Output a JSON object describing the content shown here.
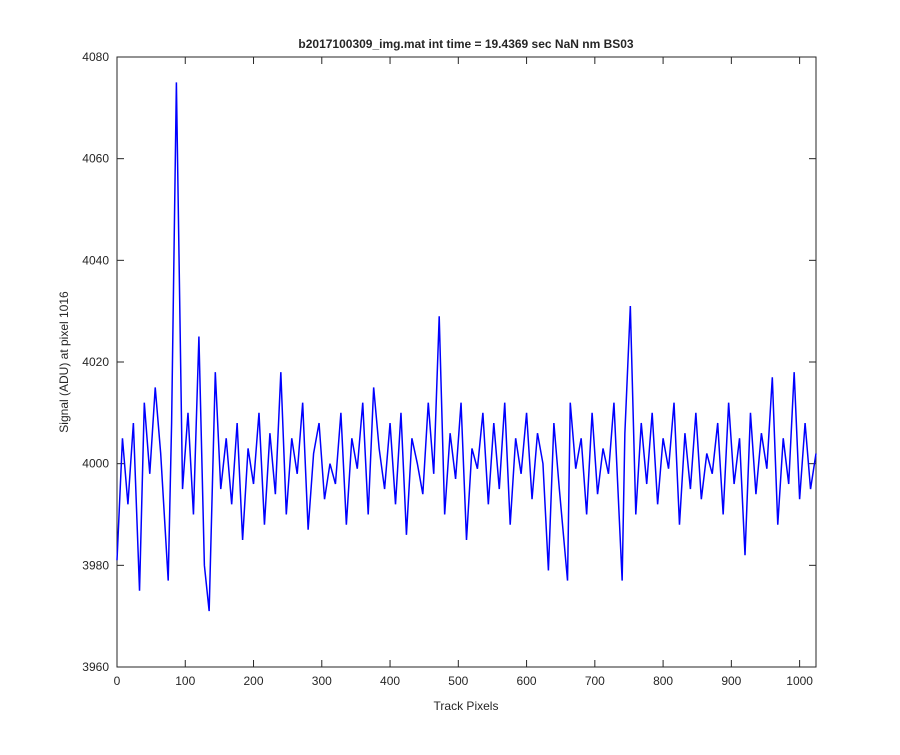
{
  "chart_data": {
    "type": "line",
    "title": "b2017100309_img.mat int time = 19.4369 sec  NaN nm BS03",
    "x_label": "Track Pixels",
    "y_label": "Signal (ADU) at pixel 1016",
    "xlim": [
      0,
      1024
    ],
    "xticks": [
      0,
      100,
      200,
      300,
      400,
      500,
      600,
      700,
      800,
      900,
      1000
    ],
    "ylim": [
      3960,
      4080
    ],
    "yticks": [
      3960,
      3980,
      4000,
      4020,
      4040,
      4060,
      4080
    ],
    "grid": false,
    "series": [
      {
        "color": "#0000ff",
        "x": [
          0,
          8,
          16,
          24,
          33,
          40,
          48,
          56,
          64,
          75,
          80,
          87,
          96,
          104,
          112,
          120,
          128,
          135,
          144,
          152,
          160,
          168,
          176,
          184,
          192,
          200,
          208,
          216,
          224,
          232,
          240,
          248,
          256,
          264,
          272,
          280,
          288,
          296,
          304,
          312,
          320,
          328,
          336,
          344,
          352,
          360,
          368,
          376,
          384,
          392,
          400,
          408,
          416,
          424,
          432,
          440,
          448,
          456,
          464,
          472,
          480,
          488,
          496,
          504,
          512,
          520,
          528,
          536,
          544,
          552,
          560,
          568,
          576,
          584,
          592,
          600,
          608,
          616,
          624,
          632,
          640,
          648,
          660,
          664,
          672,
          680,
          688,
          696,
          704,
          712,
          720,
          728,
          740,
          744,
          752,
          760,
          768,
          776,
          784,
          792,
          800,
          808,
          816,
          824,
          832,
          840,
          848,
          856,
          864,
          872,
          880,
          888,
          896,
          904,
          912,
          920,
          928,
          936,
          944,
          952,
          960,
          968,
          976,
          984,
          992,
          1000,
          1008,
          1016,
          1024
        ],
        "values": [
          3981,
          4005,
          3992,
          4008,
          3975,
          4012,
          3998,
          4015,
          4002,
          3977,
          4008,
          4075,
          3995,
          4010,
          3990,
          4025,
          3980,
          3971,
          4018,
          3995,
          4005,
          3992,
          4008,
          3985,
          4003,
          3996,
          4010,
          3988,
          4006,
          3994,
          4018,
          3990,
          4005,
          3998,
          4012,
          3987,
          4002,
          4008,
          3993,
          4000,
          3996,
          4010,
          3988,
          4005,
          3999,
          4012,
          3990,
          4015,
          4003,
          3995,
          4008,
          3992,
          4010,
          3986,
          4005,
          4000,
          3994,
          4012,
          3998,
          4029,
          3990,
          4006,
          3997,
          4012,
          3985,
          4003,
          3999,
          4010,
          3992,
          4008,
          3995,
          4012,
          3988,
          4005,
          3998,
          4010,
          3993,
          4006,
          4000,
          3979,
          4008,
          3995,
          3977,
          4012,
          3999,
          4005,
          3990,
          4010,
          3994,
          4003,
          3998,
          4012,
          3977,
          4006,
          4031,
          3990,
          4008,
          3996,
          4010,
          3992,
          4005,
          3999,
          4012,
          3988,
          4006,
          3995,
          4010,
          3993,
          4002,
          3998,
          4008,
          3990,
          4012,
          3996,
          4005,
          3982,
          4010,
          3994,
          4006,
          3999,
          4017,
          3988,
          4005,
          3996,
          4018,
          3993,
          4008,
          3995,
          4002
        ]
      }
    ]
  }
}
